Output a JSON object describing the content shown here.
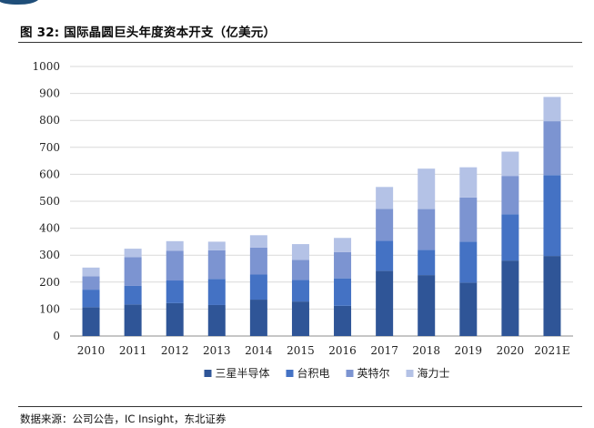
{
  "figure": {
    "title": "图 32: 国际晶圆巨头年度资本开支（亿美元）",
    "source": "数据来源：公司公告，IC Insight，东北证券"
  },
  "chart_data": {
    "type": "bar",
    "stacked": true,
    "title": "",
    "xlabel": "",
    "ylabel": "",
    "ylim": [
      0,
      1000
    ],
    "yticks": [
      0,
      100,
      200,
      300,
      400,
      500,
      600,
      700,
      800,
      900,
      1000
    ],
    "grid": true,
    "legend_position": "bottom",
    "categories": [
      "2010",
      "2011",
      "2012",
      "2013",
      "2014",
      "2015",
      "2016",
      "2017",
      "2018",
      "2019",
      "2020",
      "2021E"
    ],
    "series": [
      {
        "name": "三星半导体",
        "color": "#2f5597",
        "values": [
          107,
          117,
          122,
          115,
          135,
          128,
          112,
          242,
          226,
          198,
          280,
          297
        ]
      },
      {
        "name": "台积电",
        "color": "#4472c4",
        "values": [
          65,
          69,
          84,
          97,
          93,
          80,
          102,
          112,
          94,
          152,
          172,
          300
        ]
      },
      {
        "name": "英特尔",
        "color": "#7c94d1",
        "values": [
          50,
          107,
          110,
          106,
          100,
          74,
          97,
          118,
          151,
          164,
          142,
          200
        ]
      },
      {
        "name": "海力士",
        "color": "#b4c2e6",
        "values": [
          32,
          31,
          36,
          32,
          46,
          59,
          53,
          81,
          150,
          112,
          90,
          90
        ]
      }
    ]
  }
}
